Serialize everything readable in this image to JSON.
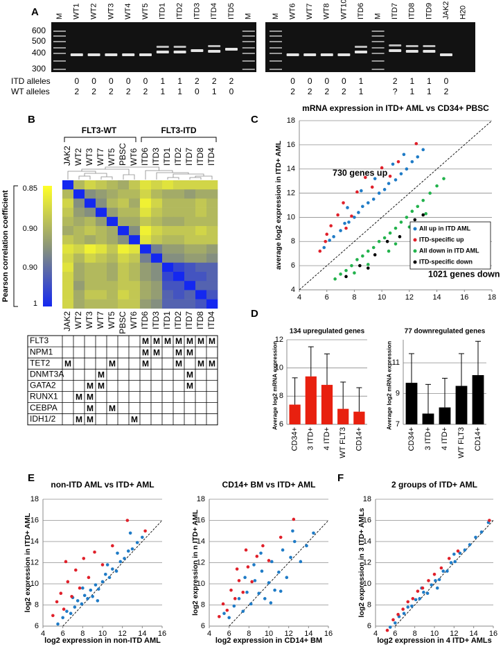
{
  "panel_labels": [
    "A",
    "B",
    "C",
    "D",
    "E",
    "F"
  ],
  "gel": {
    "marker_sizes": [
      600,
      500,
      400,
      300
    ],
    "row_labels": [
      "ITD alleles",
      "WT alleles"
    ],
    "left_lanes": [
      "M",
      "WT1",
      "WT2",
      "WT3",
      "WT4",
      "WT5",
      "ITD1",
      "ITD2",
      "ITD3",
      "ITD4",
      "ITD5",
      "M"
    ],
    "left_itd": [
      null,
      0,
      0,
      0,
      0,
      0,
      1,
      1,
      2,
      2,
      2,
      null
    ],
    "left_wt": [
      null,
      2,
      2,
      2,
      2,
      2,
      1,
      1,
      0,
      1,
      0,
      null
    ],
    "right_lanes": [
      "M",
      "WT6",
      "WT7",
      "WT8",
      "WT10",
      "ITD6",
      "M",
      "ITD7",
      "ITD8",
      "ITD9",
      "JAK2",
      "H20"
    ],
    "right_itd": [
      null,
      0,
      0,
      0,
      0,
      1,
      null,
      2,
      1,
      1,
      0,
      null
    ],
    "right_wt": [
      null,
      2,
      2,
      2,
      2,
      1,
      null,
      "?",
      1,
      1,
      2,
      null
    ]
  },
  "heatmap": {
    "group_labels": [
      "FLT3-WT",
      "FLT3-ITD"
    ],
    "samples": [
      "JAK2",
      "WT2",
      "WT3",
      "WT7",
      "WT5",
      "PBSC",
      "WT6",
      "ITD6",
      "ITD3",
      "ITD1",
      "ITD2",
      "ITD7",
      "ITD8",
      "ITD4"
    ],
    "colorbar_label": "Pearson correlation coefficient",
    "colorbar_ticks": [
      0.85,
      {
        "value": 0.9,
        "label": "0.90"
      },
      {
        "value": 0.9,
        "label": "0.90"
      },
      1
    ],
    "matrix": [
      [
        1,
        0.9,
        0.88,
        0.89,
        0.9,
        0.91,
        0.89,
        0.87,
        0.88,
        0.87,
        0.88,
        0.88,
        0.88,
        0.88
      ],
      [
        0.9,
        1,
        0.93,
        0.92,
        0.91,
        0.9,
        0.9,
        0.88,
        0.9,
        0.91,
        0.91,
        0.92,
        0.91,
        0.91
      ],
      [
        0.88,
        0.93,
        1,
        0.93,
        0.9,
        0.89,
        0.91,
        0.86,
        0.88,
        0.9,
        0.9,
        0.9,
        0.89,
        0.9
      ],
      [
        0.89,
        0.92,
        0.93,
        1,
        0.92,
        0.9,
        0.9,
        0.87,
        0.89,
        0.9,
        0.9,
        0.9,
        0.89,
        0.9
      ],
      [
        0.9,
        0.91,
        0.9,
        0.92,
        1,
        0.91,
        0.91,
        0.89,
        0.9,
        0.91,
        0.91,
        0.9,
        0.9,
        0.9
      ],
      [
        0.91,
        0.9,
        0.89,
        0.9,
        0.91,
        1,
        0.93,
        0.86,
        0.88,
        0.89,
        0.89,
        0.89,
        0.88,
        0.89
      ],
      [
        0.89,
        0.9,
        0.91,
        0.9,
        0.91,
        0.93,
        1,
        0.87,
        0.89,
        0.9,
        0.9,
        0.89,
        0.89,
        0.89
      ],
      [
        0.87,
        0.88,
        0.86,
        0.87,
        0.89,
        0.86,
        0.87,
        1,
        0.94,
        0.92,
        0.92,
        0.91,
        0.91,
        0.92
      ],
      [
        0.88,
        0.9,
        0.88,
        0.89,
        0.9,
        0.88,
        0.89,
        0.94,
        1,
        0.93,
        0.93,
        0.92,
        0.92,
        0.93
      ],
      [
        0.87,
        0.91,
        0.9,
        0.9,
        0.91,
        0.89,
        0.9,
        0.92,
        0.93,
        1,
        0.98,
        0.97,
        0.96,
        0.96
      ],
      [
        0.88,
        0.91,
        0.9,
        0.9,
        0.91,
        0.89,
        0.9,
        0.92,
        0.93,
        0.98,
        1,
        0.97,
        0.97,
        0.96
      ],
      [
        0.88,
        0.92,
        0.9,
        0.9,
        0.9,
        0.89,
        0.89,
        0.91,
        0.92,
        0.97,
        0.97,
        1,
        0.96,
        0.96
      ],
      [
        0.88,
        0.91,
        0.89,
        0.89,
        0.9,
        0.88,
        0.89,
        0.91,
        0.92,
        0.96,
        0.97,
        0.96,
        1,
        0.97
      ],
      [
        0.88,
        0.91,
        0.9,
        0.9,
        0.9,
        0.89,
        0.89,
        0.92,
        0.93,
        0.96,
        0.96,
        0.96,
        0.97,
        1
      ]
    ]
  },
  "mutations": {
    "rows": [
      {
        "gene": "FLT3",
        "cells": [
          null,
          null,
          null,
          null,
          null,
          null,
          null,
          "M",
          "M",
          "M",
          "M",
          "M",
          "M",
          "M"
        ]
      },
      {
        "gene": "NPM1",
        "cells": [
          null,
          null,
          null,
          null,
          null,
          null,
          null,
          "M",
          "M",
          null,
          "M",
          "M",
          null,
          null
        ]
      },
      {
        "gene": "TET2",
        "cells": [
          "M",
          null,
          null,
          null,
          "M",
          null,
          null,
          "M",
          null,
          null,
          "M",
          null,
          "M",
          "M"
        ]
      },
      {
        "gene": "DNMT3A",
        "cells": [
          null,
          null,
          null,
          "M",
          null,
          null,
          null,
          null,
          null,
          null,
          null,
          "M",
          null,
          null
        ]
      },
      {
        "gene": "GATA2",
        "cells": [
          null,
          null,
          "M",
          "M",
          null,
          null,
          null,
          null,
          null,
          null,
          null,
          "M",
          null,
          null
        ]
      },
      {
        "gene": "RUNX1",
        "cells": [
          null,
          "M",
          "M",
          null,
          null,
          null,
          null,
          null,
          null,
          null,
          null,
          null,
          null,
          null
        ]
      },
      {
        "gene": "CEBPA",
        "cells": [
          null,
          null,
          "M",
          null,
          "M",
          null,
          null,
          null,
          null,
          null,
          null,
          null,
          null,
          null
        ]
      },
      {
        "gene": "IDH1/2",
        "cells": [
          null,
          "M",
          "M",
          null,
          null,
          null,
          "M",
          null,
          null,
          null,
          null,
          null,
          null,
          null
        ]
      }
    ]
  },
  "chart_data": [
    {
      "type": "scatter",
      "title": "mRNA expression in ITD+ AML vs CD34+ PBSC",
      "y_label": "average log2 expression in ITD+ AML",
      "xlim": [
        4,
        18
      ],
      "ylim": [
        4,
        18
      ],
      "xticks": [
        4,
        6,
        8,
        10,
        12,
        14,
        16,
        18
      ],
      "yticks": [
        4,
        6,
        8,
        10,
        12,
        14,
        16,
        18
      ],
      "grid": true,
      "diagonal": true,
      "legend": "right",
      "annotations": [
        "730 genes up",
        "1021 genes down"
      ],
      "series": [
        {
          "name": "All up in ITD AML",
          "color": "#1f7bc6",
          "x": [
            5.8,
            6.2,
            6.5,
            7,
            7.3,
            7.6,
            8,
            8.3,
            8.6,
            9,
            9.4,
            9.8,
            10.2,
            10.5,
            11,
            11.4,
            11.8,
            12.2,
            12.6,
            13,
            8.5,
            7.5,
            9.5,
            11.6,
            10.8
          ],
          "y": [
            7.5,
            8.1,
            8.4,
            8.9,
            9.5,
            9.6,
            10,
            10.4,
            10.9,
            11.2,
            11.5,
            12,
            12.3,
            12.8,
            13.1,
            13.6,
            14,
            14.6,
            15,
            15.6,
            12.2,
            10.8,
            13.2,
            15.2,
            14.4
          ]
        },
        {
          "name": "ITD-specific up",
          "color": "#e0202a",
          "x": [
            5.5,
            5.9,
            6.3,
            6.8,
            7.2,
            7.8,
            8.2,
            8.8,
            9.3,
            10,
            10.6,
            11.2,
            12.5,
            6,
            7.4
          ],
          "y": [
            7.2,
            8,
            9.3,
            10.2,
            11.2,
            10.1,
            12.1,
            13.3,
            12.5,
            14.1,
            13.4,
            14.6,
            16.1,
            8.6,
            9.1
          ]
        },
        {
          "name": "All down in ITD AML",
          "color": "#22b24c",
          "x": [
            6.6,
            7,
            7.4,
            7.8,
            8.2,
            8.6,
            9,
            9.4,
            9.8,
            10.2,
            10.6,
            11,
            11.4,
            11.8,
            12.2,
            12.6,
            13,
            13.5,
            14,
            14.5,
            9,
            10.5,
            8,
            12,
            11,
            13.2
          ],
          "y": [
            4.9,
            5.3,
            5.6,
            6,
            6.5,
            6.8,
            7.2,
            7.5,
            8,
            8.3,
            8.7,
            9.1,
            9.6,
            10,
            10.5,
            10.9,
            11.4,
            12,
            12.6,
            13.2,
            6.1,
            7.2,
            5.4,
            9.2,
            7.8,
            10.3
          ]
        },
        {
          "name": "ITD-specific down",
          "color": "#000000",
          "x": [
            7.4,
            8.4,
            9.5,
            10.4,
            11.3,
            12.4,
            13,
            9
          ],
          "y": [
            5.1,
            6,
            6.9,
            8,
            8.4,
            9.8,
            10.2,
            5.8
          ]
        }
      ]
    },
    {
      "type": "bar",
      "title": "134 upregulated genes",
      "y_label": "Average log2 mRNA expression",
      "categories": [
        "CD34+",
        "3 ITD+",
        "4 ITD+",
        "WT FLT3",
        "CD14+"
      ],
      "values": [
        7.4,
        9.4,
        8.8,
        7.1,
        6.9
      ],
      "errors": [
        1.9,
        2.1,
        2.2,
        1.9,
        1.7
      ],
      "color": "#e8200f",
      "ylim": [
        6,
        12
      ],
      "yticks": [
        6,
        8,
        10,
        12
      ],
      "grid": true
    },
    {
      "type": "bar",
      "title": "77 downregulated genes",
      "y_label": "Average log2 mRNA expression",
      "categories": [
        "CD34+",
        "3 ITD+",
        "4 ITD+",
        "WT FLT3",
        "CD14+"
      ],
      "values": [
        9.7,
        7.7,
        8.1,
        9.5,
        10.2
      ],
      "errors": [
        1.9,
        1.9,
        1.9,
        2.1,
        2.2
      ],
      "color": "#000000",
      "ylim": [
        7,
        12.5
      ],
      "yticks": [
        7,
        9,
        11
      ],
      "grid": true
    },
    {
      "type": "scatter",
      "title": "non-ITD AML vs ITD+ AML",
      "x_label": "log2 expression in non-ITD AML",
      "y_label": "log2 expression in ITD+ AML",
      "xlim": [
        4,
        16
      ],
      "ylim": [
        6,
        18
      ],
      "xticks": [
        4,
        6,
        8,
        10,
        12,
        14,
        16
      ],
      "yticks": [
        6,
        8,
        10,
        12,
        14,
        16,
        18
      ],
      "grid": true,
      "diagonal": true,
      "series": [
        {
          "color": "#1f7bc6",
          "x": [
            5.5,
            6,
            6.4,
            6.8,
            7.2,
            7.5,
            7.9,
            8.2,
            8.5,
            8.8,
            9,
            9.3,
            9.6,
            10,
            10.3,
            10.7,
            11,
            11.4,
            11.8,
            12.2,
            12.6,
            13,
            13.5,
            14,
            8,
            9.5,
            10.5,
            7,
            11.5,
            12.8
          ],
          "y": [
            6.2,
            6.8,
            7.4,
            7.2,
            7.8,
            8.4,
            8.1,
            8.9,
            8.6,
            9.4,
            8.8,
            9.9,
            9.5,
            10.2,
            10.9,
            10.6,
            11.4,
            11.2,
            12.1,
            12.4,
            13.1,
            13.3,
            13.9,
            14.4,
            9.6,
            8.4,
            11.8,
            8.7,
            12.9,
            14.8
          ]
        },
        {
          "color": "#e0202a",
          "x": [
            5,
            5.4,
            5.8,
            6.1,
            6.5,
            6.9,
            7.3,
            7.7,
            8.1,
            8.6,
            9.2,
            10,
            11,
            12.5,
            14.3,
            6.3
          ],
          "y": [
            7,
            8.3,
            9.1,
            7.6,
            10.2,
            8.8,
            11.3,
            9.6,
            12.4,
            10.6,
            13,
            11.8,
            13.6,
            16,
            15,
            12.1
          ]
        }
      ]
    },
    {
      "type": "scatter",
      "title": "CD14+ BM vs ITD+ AML",
      "x_label": "log2 expression in CD14+ BM",
      "y_label": "log2 expression in n ITD+ AML",
      "xlim": [
        4,
        16
      ],
      "ylim": [
        6,
        18
      ],
      "xticks": [
        4,
        6,
        8,
        10,
        12,
        14,
        16
      ],
      "yticks": [
        6,
        8,
        10,
        12,
        14,
        16,
        18
      ],
      "grid": true,
      "diagonal": true,
      "series": [
        {
          "color": "#1f7bc6",
          "x": [
            5.5,
            6,
            6.5,
            7,
            7.4,
            7.8,
            8.2,
            8.6,
            9,
            9.3,
            9.6,
            10,
            10.3,
            10.6,
            11,
            11.4,
            11.8,
            12.2,
            12.6,
            13.2,
            13.8,
            8.5,
            9.2,
            10.2,
            11.2,
            7.6,
            12.4,
            14.5
          ],
          "y": [
            7.2,
            6.8,
            7.9,
            8.6,
            7.4,
            9.2,
            8.1,
            10.3,
            9.1,
            11.2,
            8.6,
            10.1,
            12.1,
            9.4,
            11.1,
            13.2,
            10.6,
            12.5,
            14,
            12.1,
            13.6,
            11.8,
            12.9,
            8.2,
            9.3,
            10.6,
            15,
            14.8
          ]
        },
        {
          "color": "#e0202a",
          "x": [
            5,
            5.4,
            5.8,
            6.2,
            6.6,
            7,
            7.4,
            7.9,
            8.3,
            8.8,
            9.4,
            10,
            11.2,
            12.5,
            6.8,
            7.7
          ],
          "y": [
            6.9,
            8.1,
            7.5,
            9.4,
            8.6,
            10.3,
            9.2,
            11.6,
            10.2,
            12.6,
            13.6,
            12.2,
            14.4,
            16.1,
            11.4,
            13.2
          ]
        }
      ]
    },
    {
      "type": "scatter",
      "title": "2 groups of ITD+ AML",
      "x_label": "log2 expression in 4 ITD+ AMLs",
      "y_label": "log2 expression in  3 ITD+ AMLs",
      "xlim": [
        4,
        16
      ],
      "ylim": [
        6,
        18
      ],
      "xticks": [
        4,
        6,
        8,
        10,
        12,
        14,
        16
      ],
      "yticks": [
        6,
        8,
        10,
        12,
        14,
        16,
        18
      ],
      "grid": true,
      "diagonal": true,
      "series": [
        {
          "color": "#1f7bc6",
          "x": [
            5.5,
            6,
            6.4,
            6.9,
            7.3,
            7.7,
            8.1,
            8.5,
            8.9,
            9.3,
            9.7,
            10.1,
            10.5,
            10.9,
            11.3,
            11.7,
            12.1,
            12.6,
            13.1,
            13.6,
            14.2,
            14.8,
            15.5,
            8.7,
            10.3,
            12
          ],
          "y": [
            5.9,
            6.3,
            6.9,
            7.2,
            7.8,
            7.9,
            8.5,
            8.6,
            9.2,
            9.1,
            9.9,
            10.3,
            10.4,
            11.2,
            11.2,
            12,
            12.1,
            12.9,
            13.2,
            13.7,
            14.4,
            14.9,
            15.8,
            9.6,
            9.6,
            12.8
          ]
        },
        {
          "color": "#e0202a",
          "x": [
            5.2,
            5.8,
            6.3,
            6.8,
            7.3,
            7.8,
            8.3,
            8.8,
            9.4,
            10,
            10.7,
            11.5,
            12.4,
            15.6
          ],
          "y": [
            5.6,
            6.6,
            7.1,
            7.6,
            8.3,
            8.6,
            9.3,
            9.6,
            10.3,
            10.9,
            11.5,
            12.4,
            13.1,
            16
          ]
        }
      ]
    }
  ]
}
